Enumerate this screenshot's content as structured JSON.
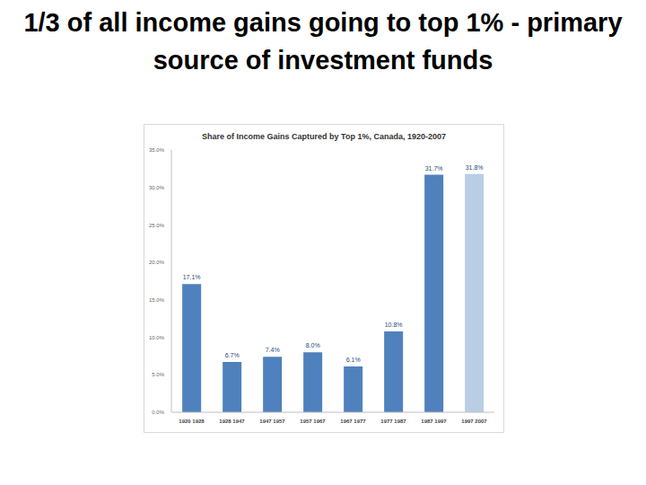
{
  "slide": {
    "title": "1/3 of all income gains going to top 1% - primary source of investment funds"
  },
  "chart_data": {
    "type": "bar",
    "title": "Share of Income Gains Captured by Top 1%, Canada, 1920-2007",
    "categories": [
      "1920 1928",
      "1928 1947",
      "1947 1957",
      "1957 1967",
      "1967 1977",
      "1977 1987",
      "1987 1997",
      "1997 2007"
    ],
    "values": [
      17.1,
      6.7,
      7.4,
      8.0,
      6.1,
      10.8,
      31.7,
      31.8
    ],
    "value_labels": [
      "17.1%",
      "6.7%",
      "7.4%",
      "8.0%",
      "6.1%",
      "10.8%",
      "31.7%",
      "31.8%"
    ],
    "colors": [
      "#4f81bd",
      "#4f81bd",
      "#4f81bd",
      "#4f81bd",
      "#4f81bd",
      "#4f81bd",
      "#4f81bd",
      "#b9cde5"
    ],
    "ylim": [
      0,
      35
    ],
    "yticks": [
      {
        "value": 0,
        "label": "0.0%"
      },
      {
        "value": 5,
        "label": "5.0%"
      },
      {
        "value": 10,
        "label": "10.0%"
      },
      {
        "value": 15,
        "label": "15.0%"
      },
      {
        "value": 20,
        "label": "20.0%"
      },
      {
        "value": 25,
        "label": "25.0%"
      },
      {
        "value": 30,
        "label": "30.0%"
      },
      {
        "value": 35,
        "label": "35.0%"
      }
    ],
    "data_labels": true,
    "grid": false
  }
}
